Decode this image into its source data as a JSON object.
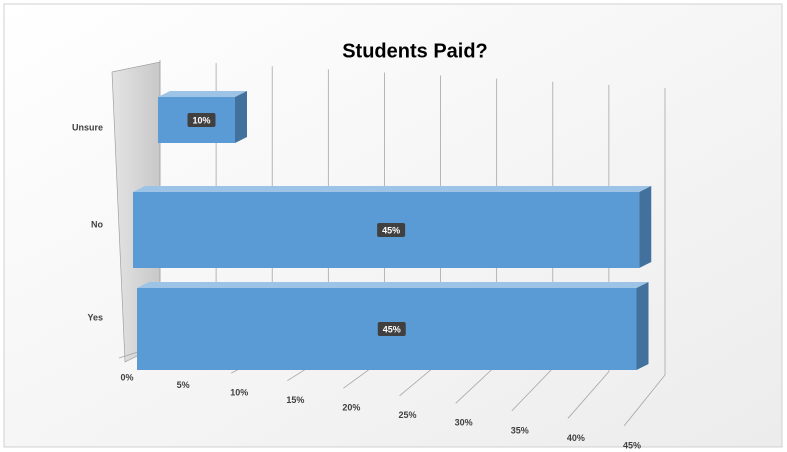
{
  "chart_data": {
    "type": "bar3d",
    "title": "Students Paid?",
    "categories": [
      "Unsure",
      "No",
      "Yes"
    ],
    "values": [
      10,
      45,
      45
    ],
    "value_labels": [
      "10%",
      "45%",
      "45%"
    ],
    "color": "#5b9bd5",
    "xlim": [
      0,
      45
    ],
    "xticks": [
      {
        "value": 0,
        "label": "0%"
      },
      {
        "value": 5,
        "label": "5%"
      },
      {
        "value": 10,
        "label": "10%"
      },
      {
        "value": 15,
        "label": "15%"
      },
      {
        "value": 20,
        "label": "20%"
      },
      {
        "value": 25,
        "label": "25%"
      },
      {
        "value": 30,
        "label": "30%"
      },
      {
        "value": 35,
        "label": "35%"
      },
      {
        "value": 40,
        "label": "40%"
      },
      {
        "value": 45,
        "label": "45%"
      }
    ],
    "grid": true
  }
}
